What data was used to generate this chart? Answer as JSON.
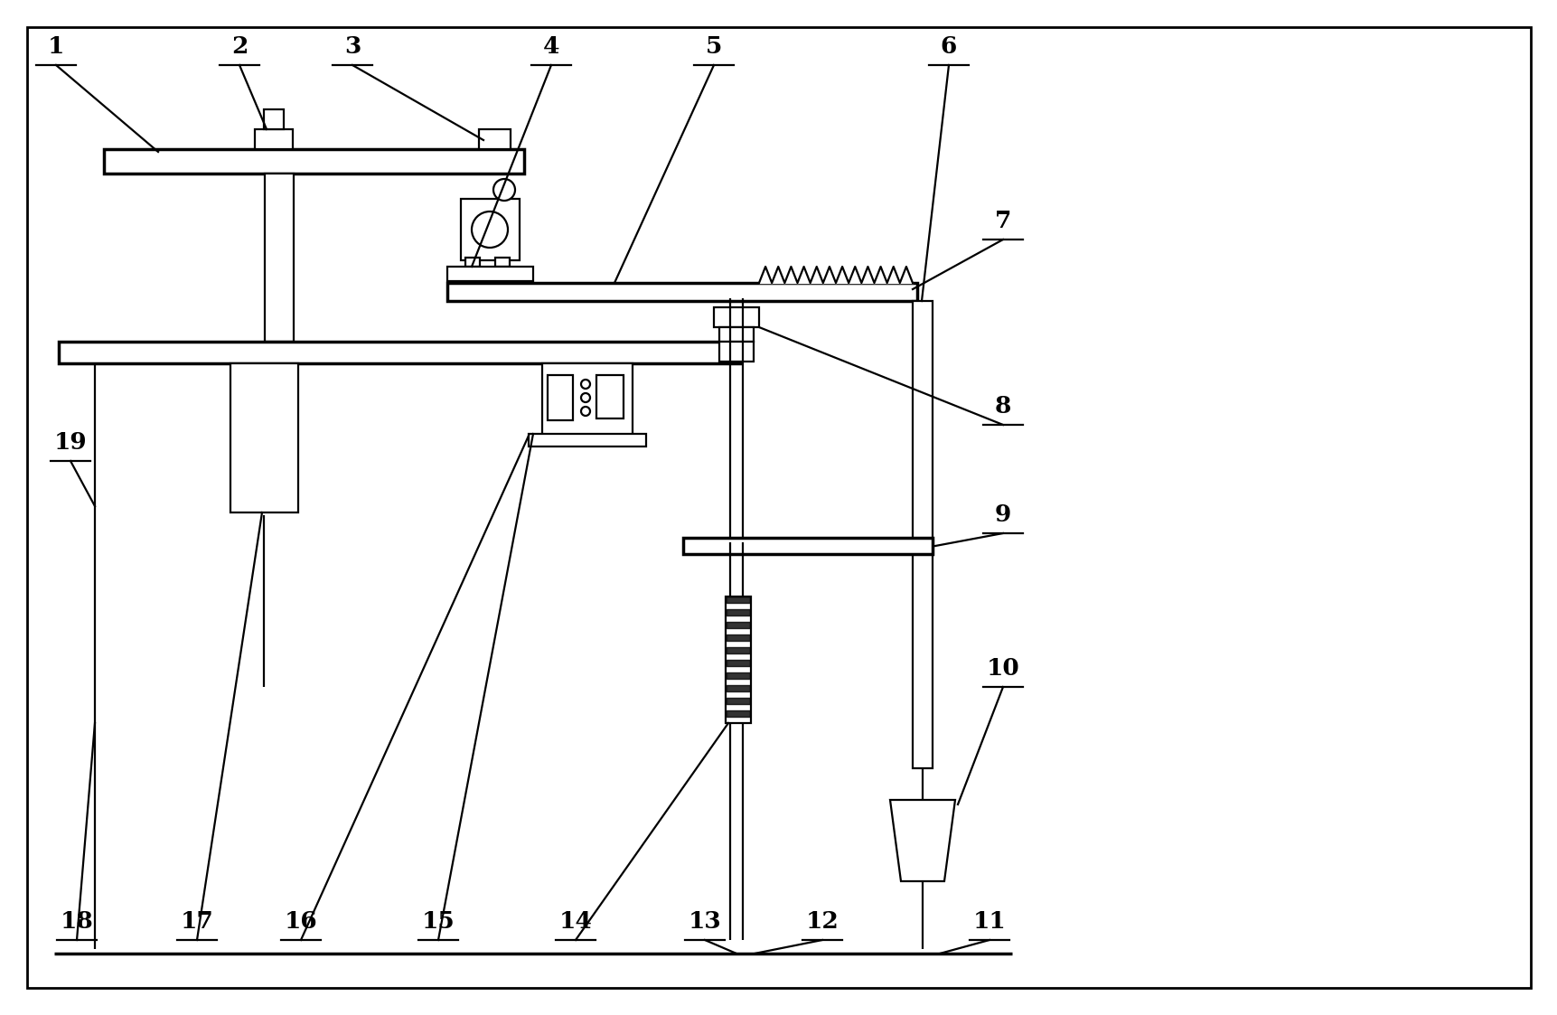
{
  "bg": "#ffffff",
  "lc": "#000000",
  "lw": 1.6,
  "tlw": 2.5,
  "fw": 17.24,
  "fh": 11.23,
  "fs": 19
}
